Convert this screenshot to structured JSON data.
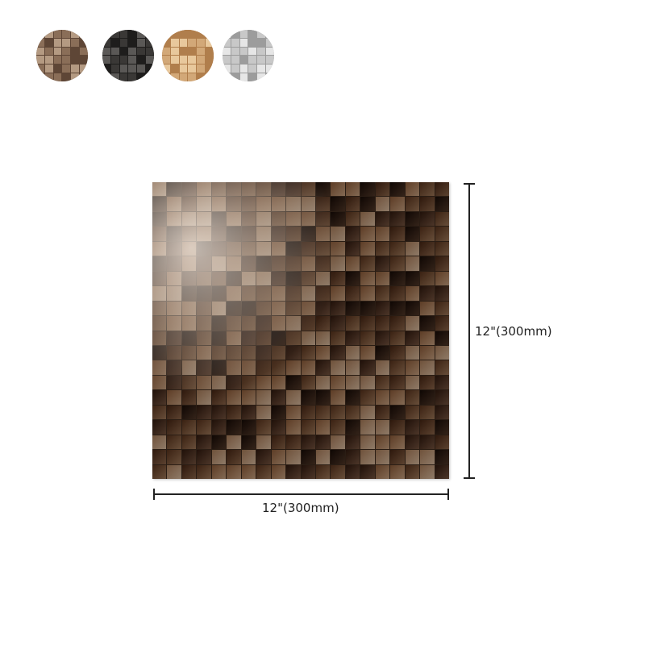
{
  "color_options": [
    {
      "name": "bronze",
      "colors": [
        "#8a6e58",
        "#b49a82",
        "#5e4636"
      ]
    },
    {
      "name": "black",
      "colors": [
        "#3a3836",
        "#5a5856",
        "#1e1d1c"
      ]
    },
    {
      "name": "gold",
      "colors": [
        "#d2a878",
        "#e8c89c",
        "#b07e4c"
      ]
    },
    {
      "name": "silver",
      "colors": [
        "#c8c8c8",
        "#e6e6e6",
        "#9c9c9c"
      ]
    }
  ],
  "product": {
    "tile_colors": [
      "#7a5c44",
      "#5a4030",
      "#9a7c62",
      "#3e2a1e",
      "#a8907a",
      "#6c4e38"
    ]
  },
  "dimensions": {
    "width_label": "12\"(300mm)",
    "height_label": "12\"(300mm)"
  }
}
